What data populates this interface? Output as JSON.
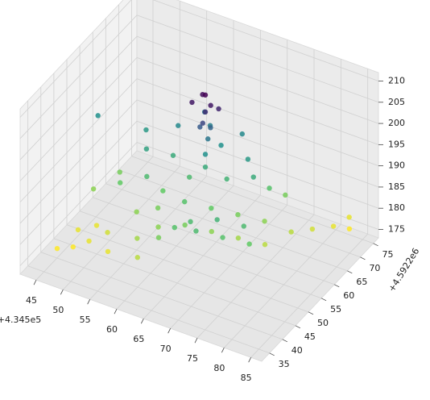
{
  "chart_data": {
    "type": "scatter3d",
    "colormap": "viridis_r",
    "grid": true,
    "x_offset_label": "+4.345e5",
    "y_offset_label": "+4.5922e6",
    "xlim": [
      42,
      87
    ],
    "ylim": [
      32,
      77
    ],
    "zlim": [
      173,
      212
    ],
    "xticks": [
      45,
      50,
      55,
      60,
      65,
      70,
      75,
      80,
      85
    ],
    "yticks": [
      35,
      40,
      45,
      50,
      55,
      60,
      65,
      70,
      75
    ],
    "zticks": [
      175,
      180,
      185,
      190,
      195,
      200,
      205,
      210
    ],
    "x": [
      46,
      48,
      50,
      47,
      52,
      49,
      54,
      55,
      58,
      60,
      57,
      62,
      64,
      66,
      68,
      70,
      72,
      74,
      76,
      78,
      80,
      82,
      84,
      60,
      56,
      52,
      50,
      55,
      60,
      65,
      58,
      63,
      68,
      70,
      66,
      72,
      74,
      54,
      50,
      48,
      46,
      66,
      68,
      70,
      72,
      74,
      76,
      64,
      62,
      58,
      60,
      62,
      62,
      62,
      61,
      62,
      62,
      63,
      61,
      62,
      60,
      64,
      62,
      42,
      83
    ],
    "y": [
      38,
      40,
      42,
      44,
      45,
      47,
      41,
      50,
      52,
      48,
      56,
      54,
      50,
      56,
      52,
      58,
      54,
      60,
      56,
      62,
      66,
      70,
      72,
      60,
      62,
      60,
      64,
      66,
      68,
      70,
      70,
      66,
      66,
      64,
      62,
      66,
      68,
      56,
      54,
      58,
      52,
      48,
      46,
      50,
      48,
      52,
      50,
      46,
      44,
      44,
      40,
      62,
      62,
      63,
      62,
      61,
      62,
      62,
      63,
      62,
      61,
      63,
      64,
      62,
      74
    ],
    "z": [
      177,
      177,
      178,
      178,
      179,
      178,
      178,
      182,
      183,
      182,
      184,
      185,
      183,
      184,
      182,
      183,
      181,
      182,
      180,
      180,
      179,
      178,
      177,
      186,
      188,
      189,
      190,
      192,
      193,
      192,
      194,
      191,
      190,
      188,
      187,
      185,
      183,
      186,
      184,
      183,
      182,
      186,
      186,
      187,
      185,
      186,
      184,
      185,
      183,
      181,
      180,
      188,
      191,
      194,
      197,
      199,
      201,
      203,
      204,
      205,
      203,
      202,
      196,
      191,
      178
    ]
  }
}
